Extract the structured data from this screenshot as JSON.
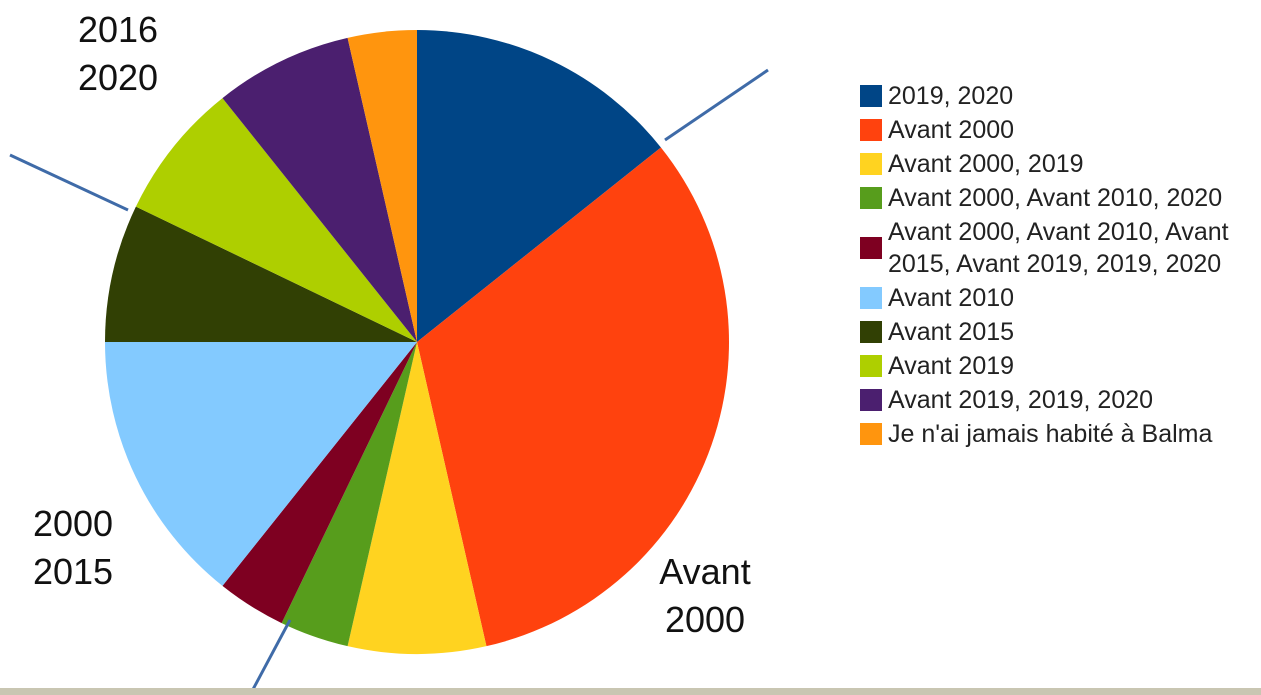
{
  "chart_data": {
    "type": "pie",
    "categories": [
      "2019, 2020",
      "Avant 2000",
      "Avant 2000, 2019",
      "Avant 2000, Avant 2010, 2020",
      "Avant 2000, Avant 2010, Avant 2015, Avant 2019, 2019, 2020",
      "Avant 2010",
      "Avant 2015",
      "Avant 2019",
      "Avant 2019, 2019, 2020",
      "Je n'ai jamais habité à Balma"
    ],
    "values": [
      4,
      9,
      2,
      1,
      1,
      4,
      2,
      2,
      2,
      1
    ],
    "colors": [
      "#004586",
      "#ff420e",
      "#ffd320",
      "#579d1c",
      "#7e0021",
      "#83caff",
      "#314004",
      "#aecf00",
      "#4b1f6f",
      "#ff950e"
    ],
    "legend": "right",
    "annotations": [
      "2016\n2020",
      "2000\n2015",
      "Avant\n2000"
    ]
  }
}
